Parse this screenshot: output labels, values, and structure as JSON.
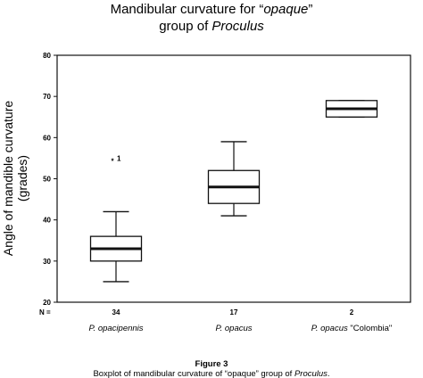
{
  "chart_data": {
    "type": "boxplot",
    "title_line1_prefix": "Mandibular curvature for “",
    "title_line1_italic": "opaque",
    "title_line1_suffix": "”",
    "title_line2_prefix": "group of ",
    "title_line2_italic": "Proculus",
    "ylabel_line1": "Angle of mandible curvature",
    "ylabel_line2": "(grades)",
    "ylim": [
      20,
      80
    ],
    "yticks": [
      20,
      30,
      40,
      50,
      60,
      70,
      80
    ],
    "n_label": "N =",
    "categories": [
      {
        "name": "P. opacipennis",
        "name_suffix": "",
        "n": "34",
        "min": 25,
        "q1": 30,
        "median": 33,
        "q3": 36,
        "max": 42,
        "outliers": [
          {
            "value": 55,
            "label": "1"
          }
        ]
      },
      {
        "name": "P. opacus",
        "name_suffix": "",
        "n": "17",
        "min": 41,
        "q1": 44,
        "median": 48,
        "q3": 52,
        "max": 59,
        "outliers": []
      },
      {
        "name": "P. opacus",
        "name_suffix": " \"Colombia\"",
        "n": "2",
        "min": 65,
        "q1": 65,
        "median": 67,
        "q3": 69,
        "max": 69,
        "outliers": []
      }
    ],
    "grid": false,
    "legend": "none"
  },
  "caption": {
    "figure": "Figure 3",
    "text_prefix": "Boxplot of mandibular curvature of  “opaque” group of ",
    "text_italic": "Proculus",
    "text_suffix": "."
  }
}
